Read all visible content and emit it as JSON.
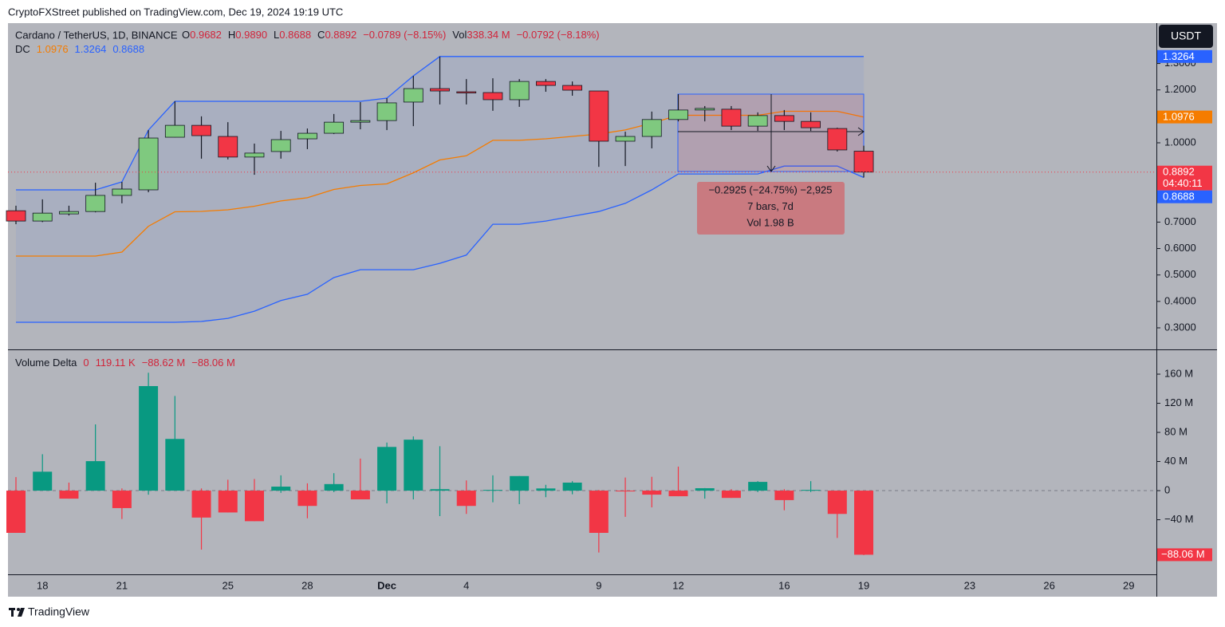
{
  "header": {
    "published": "CryptoFXStreet published on TradingView.com, Dec 19, 2024 19:19 UTC",
    "currency": "USDT",
    "footer": "TradingView"
  },
  "chart_data": [
    {
      "type": "candlestick",
      "title": "Cardano / TetherUS, 1D, BINANCE",
      "ohlc_legend": [
        {
          "key": "O",
          "value": "0.9682"
        },
        {
          "key": "H",
          "value": "0.9890"
        },
        {
          "key": "L",
          "value": "0.8688"
        },
        {
          "key": "C",
          "value": "0.8892"
        },
        {
          "key": "",
          "value": "−0.0789 (−8.15%)"
        },
        {
          "key": "Vol",
          "value": "338.34 M"
        },
        {
          "key": "",
          "value": "−0.0792 (−8.18%)"
        }
      ],
      "indicator": {
        "name": "DC",
        "values": [
          "1.0976",
          "1.3264",
          "0.8688"
        ],
        "colors": [
          "#f57c00",
          "#2962ff",
          "#2962ff"
        ]
      },
      "categories": [
        null,
        "18",
        null,
        null,
        "21",
        null,
        null,
        null,
        "25",
        null,
        null,
        "28",
        null,
        null,
        "Dec",
        null,
        null,
        "4",
        null,
        null,
        null,
        null,
        "9",
        null,
        null,
        "12",
        null,
        null,
        null,
        "16",
        null,
        null,
        "19",
        null,
        null,
        null,
        "23",
        null,
        null,
        "26",
        null,
        null,
        "29",
        null
      ],
      "open": [
        0.743,
        0.704,
        0.731,
        0.74,
        0.801,
        0.822,
        1.021,
        1.066,
        1.024,
        0.946,
        0.967,
        1.015,
        1.036,
        1.078,
        1.084,
        1.154,
        1.205,
        1.193,
        1.19,
        1.163,
        1.232,
        1.217,
        1.196,
        1.006,
        1.024,
        1.088,
        1.124,
        1.127,
        1.063,
        1.103,
        1.081,
        1.054,
        0.9682,
        null,
        null,
        null,
        null,
        null,
        null,
        null,
        null,
        null,
        null,
        null
      ],
      "high": [
        0.762,
        0.786,
        0.762,
        0.849,
        0.852,
        1.048,
        1.157,
        1.1,
        1.078,
        0.997,
        1.045,
        1.054,
        1.109,
        1.154,
        1.169,
        1.253,
        1.3264,
        1.241,
        1.244,
        1.241,
        1.241,
        1.232,
        1.196,
        1.042,
        1.118,
        1.184,
        1.139,
        1.139,
        1.115,
        1.124,
        1.115,
        1.057,
        0.989,
        null,
        null,
        null,
        null,
        null,
        null,
        null,
        null,
        null,
        null,
        null
      ],
      "low": [
        0.692,
        0.7,
        0.725,
        0.737,
        0.771,
        0.813,
        1.02,
        0.94,
        0.937,
        0.879,
        0.94,
        0.976,
        1.033,
        1.051,
        1.048,
        1.063,
        1.145,
        1.145,
        1.121,
        1.136,
        1.193,
        1.178,
        0.909,
        0.912,
        0.979,
        1.081,
        1.081,
        1.048,
        1.045,
        1.048,
        1.045,
        0.967,
        0.8688,
        null,
        null,
        null,
        null,
        null,
        null,
        null,
        null,
        null,
        null,
        null
      ],
      "close": [
        0.704,
        0.734,
        0.74,
        0.801,
        0.825,
        1.018,
        1.066,
        1.027,
        0.946,
        0.961,
        1.012,
        1.036,
        1.078,
        1.084,
        1.151,
        1.205,
        1.196,
        1.19,
        1.163,
        1.232,
        1.217,
        1.199,
        1.006,
        1.024,
        1.088,
        1.124,
        1.13,
        1.063,
        1.103,
        1.081,
        1.057,
        0.973,
        0.8892,
        null,
        null,
        null,
        null,
        null,
        null,
        null,
        null,
        null,
        null,
        null
      ],
      "up_color": "#7fc97f",
      "down_color": "#f23645",
      "overlays": [
        {
          "color": "#2962ff",
          "values": [
            0.822,
            0.822,
            0.822,
            0.822,
            0.852,
            1.048,
            1.157,
            1.157,
            1.157,
            1.157,
            1.157,
            1.157,
            1.157,
            1.157,
            1.169,
            1.253,
            1.3264,
            1.3264,
            1.3264,
            1.3264,
            1.3264,
            1.3264,
            1.3264,
            1.3264,
            1.3264,
            1.3264,
            1.3264,
            1.3264,
            1.3264,
            1.3264,
            1.3264,
            1.3264,
            1.3264,
            null,
            null,
            null,
            null,
            null,
            null,
            null,
            null,
            null,
            null,
            null
          ]
        },
        {
          "color": "#2962ff",
          "values": [
            0.321,
            0.321,
            0.321,
            0.321,
            0.321,
            0.321,
            0.321,
            0.324,
            0.336,
            0.363,
            0.403,
            0.427,
            0.49,
            0.52,
            0.52,
            0.52,
            0.544,
            0.575,
            0.692,
            0.692,
            0.704,
            0.722,
            0.74,
            0.771,
            0.822,
            0.882,
            0.882,
            0.882,
            0.882,
            0.912,
            0.912,
            0.912,
            0.8688,
            null,
            null,
            null,
            null,
            null,
            null,
            null,
            null,
            null,
            null,
            null
          ]
        },
        {
          "color": "#f57c00",
          "values": [
            0.5715,
            0.5715,
            0.5715,
            0.5715,
            0.5865,
            0.6845,
            0.739,
            0.7405,
            0.7465,
            0.76,
            0.78,
            0.792,
            0.8235,
            0.8385,
            0.8445,
            0.8865,
            0.9352,
            0.9507,
            1.0092,
            1.0092,
            1.0152,
            1.0242,
            1.0332,
            1.0487,
            1.0742,
            1.1042,
            1.1042,
            1.1042,
            1.1042,
            1.1192,
            1.1192,
            1.1192,
            1.0976,
            null,
            null,
            null,
            null,
            null,
            null,
            null,
            null,
            null,
            null,
            null
          ]
        }
      ],
      "ylim": [
        0.2215,
        1.4526
      ],
      "yticks": [
        {
          "value": 1.3,
          "label": "1.3000"
        },
        {
          "value": 1.2,
          "label": "1.2000"
        },
        {
          "value": 1.0,
          "label": "1.0000"
        },
        {
          "value": 0.7,
          "label": "0.7000"
        },
        {
          "value": 0.6,
          "label": "0.6000"
        },
        {
          "value": 0.5,
          "label": "0.5000"
        },
        {
          "value": 0.4,
          "label": "0.4000"
        },
        {
          "value": 0.3,
          "label": "0.3000"
        }
      ],
      "axis_labels": [
        {
          "value": 1.3264,
          "label": "1.3264",
          "color": "#2962ff"
        },
        {
          "value": 1.0976,
          "label": "1.0976",
          "color": "#f57c00"
        },
        {
          "value": 0.8892,
          "label": "0.8892",
          "sub": "04:40:11",
          "color": "#f23645"
        },
        {
          "value": 0.8688,
          "label": "0.8688",
          "color": "#2962ff"
        }
      ],
      "measure": [
        "−0.2925 (−24.75%) −2,925",
        "7 bars, 7d",
        "Vol 1.98 B"
      ]
    },
    {
      "type": "delta-bars",
      "title": "Volume Delta",
      "legend_values": [
        "0",
        "119.11 K",
        "−88.62 M",
        "−88.06 M"
      ],
      "values": [
        -58,
        26,
        -11,
        40.5,
        -24,
        143.6,
        71,
        -37,
        -30,
        -42,
        5.5,
        -21,
        9,
        -12,
        60,
        70,
        2,
        -21,
        1,
        20,
        3,
        11,
        -58,
        -1,
        -5.5,
        -7.7,
        3.3,
        -10,
        12,
        -13,
        1,
        -32,
        -88.06,
        null,
        null,
        null,
        null,
        null,
        null,
        null,
        null,
        null,
        null,
        null
      ],
      "high": [
        18.6,
        50,
        11,
        91,
        3,
        162,
        130,
        3,
        15,
        16,
        21,
        10,
        24,
        44,
        66,
        74.5,
        61,
        14,
        21,
        20,
        8,
        13,
        1,
        18,
        19,
        33,
        3.5,
        2,
        13,
        2,
        13,
        0,
        0.11911,
        null,
        null,
        null,
        null,
        null,
        null,
        null,
        null,
        null,
        null,
        null
      ],
      "low": [
        -58,
        0,
        -11,
        0,
        -39,
        -5.5,
        0,
        -81,
        -30,
        -42,
        -3,
        -38,
        -2,
        -12,
        -17.5,
        -12,
        -35,
        -32,
        -16,
        -18.6,
        -9,
        -5,
        -85,
        -36,
        -23,
        -7.7,
        -11,
        -10,
        -2,
        -27,
        -2,
        -65,
        -88.62,
        null,
        null,
        null,
        null,
        null,
        null,
        null,
        null,
        null,
        null,
        null
      ],
      "up_color": "#089981",
      "down_color": "#f23645",
      "ylim": [
        -115,
        191.8
      ],
      "yticks": [
        {
          "value": 160,
          "label": "160 M"
        },
        {
          "value": 120,
          "label": "120 M"
        },
        {
          "value": 80,
          "label": "80 M"
        },
        {
          "value": 40,
          "label": "40 M"
        },
        0,
        {
          "value": -40,
          "label": "−40 M"
        }
      ],
      "last_label": "−88.06 M"
    }
  ]
}
